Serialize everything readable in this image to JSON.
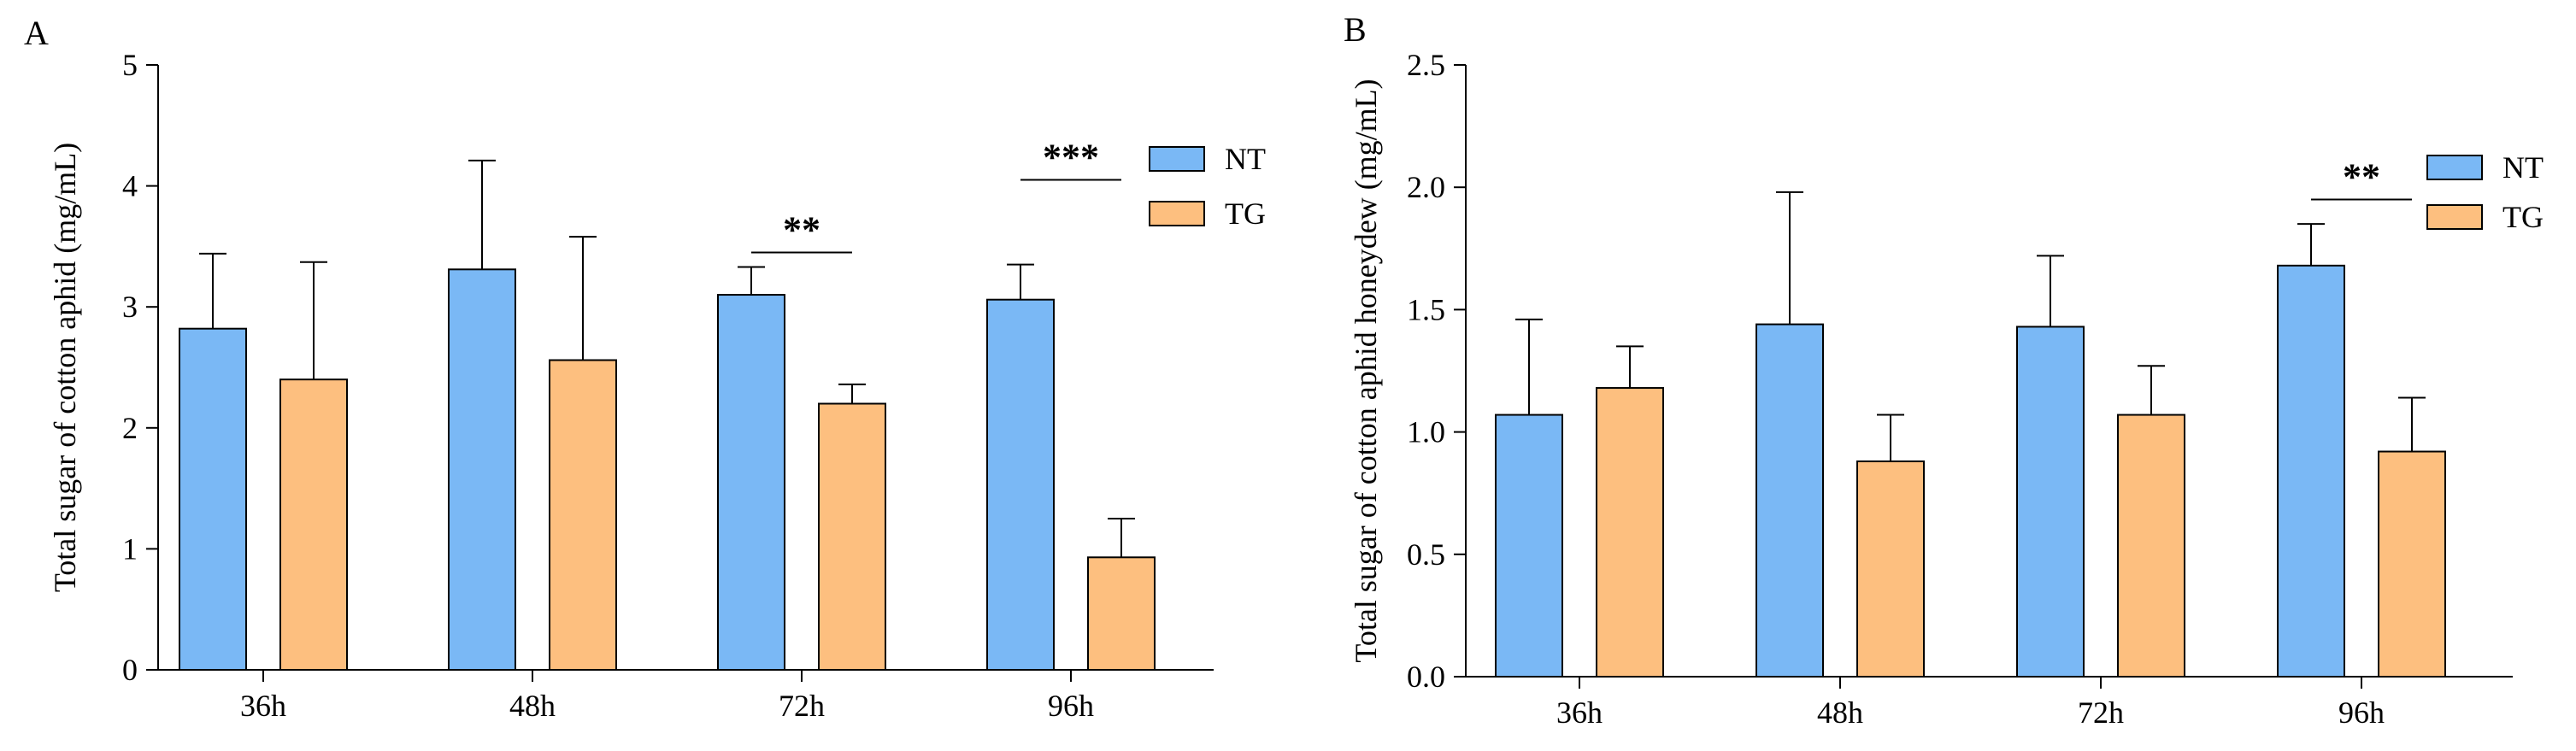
{
  "colors": {
    "nt": "#7ab8f5",
    "tg": "#fdbf7f",
    "axis": "#000000"
  },
  "chart_data": [
    {
      "panel": "A",
      "type": "bar",
      "title": "",
      "xlabel": "",
      "ylabel": "Total sugar of cotton aphid (mg/mL)",
      "ylim": [
        0,
        5
      ],
      "yticks": [
        0,
        1,
        2,
        3,
        4,
        5
      ],
      "ytick_labels": [
        "0",
        "1",
        "2",
        "3",
        "4",
        "5"
      ],
      "categories": [
        "36h",
        "48h",
        "72h",
        "96h"
      ],
      "series": [
        {
          "name": "NT",
          "color_key": "nt",
          "values": [
            2.82,
            3.31,
            3.1,
            3.06
          ],
          "errors": [
            0.62,
            0.9,
            0.23,
            0.29
          ]
        },
        {
          "name": "TG",
          "color_key": "tg",
          "values": [
            2.4,
            2.56,
            2.2,
            0.93
          ],
          "errors": [
            0.97,
            1.02,
            0.16,
            0.32
          ]
        }
      ],
      "significance": [
        {
          "category_index": 2,
          "label": "**",
          "y": 3.45
        },
        {
          "category_index": 3,
          "label": "***",
          "y": 4.05
        }
      ],
      "legend": {
        "position": "top-right",
        "entries": [
          "NT",
          "TG"
        ]
      }
    },
    {
      "panel": "B",
      "type": "bar",
      "title": "",
      "xlabel": "",
      "ylabel": "Total sugar of cotton aphid honeydew (mg/mL)",
      "ylim": [
        0,
        2.5
      ],
      "yticks": [
        0,
        0.5,
        1.0,
        1.5,
        2.0,
        2.5
      ],
      "ytick_labels": [
        "0.0",
        "0.5",
        "1.0",
        "1.5",
        "2.0",
        "2.5"
      ],
      "categories": [
        "36h",
        "48h",
        "72h",
        "96h"
      ],
      "series": [
        {
          "name": "NT",
          "color_key": "nt",
          "values": [
            1.07,
            1.44,
            1.43,
            1.68
          ],
          "errors": [
            0.39,
            0.54,
            0.29,
            0.17
          ]
        },
        {
          "name": "TG",
          "color_key": "tg",
          "values": [
            1.18,
            0.88,
            1.07,
            0.92
          ],
          "errors": [
            0.17,
            0.19,
            0.2,
            0.22
          ]
        }
      ],
      "significance": [
        {
          "category_index": 3,
          "label": "**",
          "y": 1.95
        }
      ],
      "legend": {
        "position": "top-right",
        "entries": [
          "NT",
          "TG"
        ]
      }
    }
  ]
}
